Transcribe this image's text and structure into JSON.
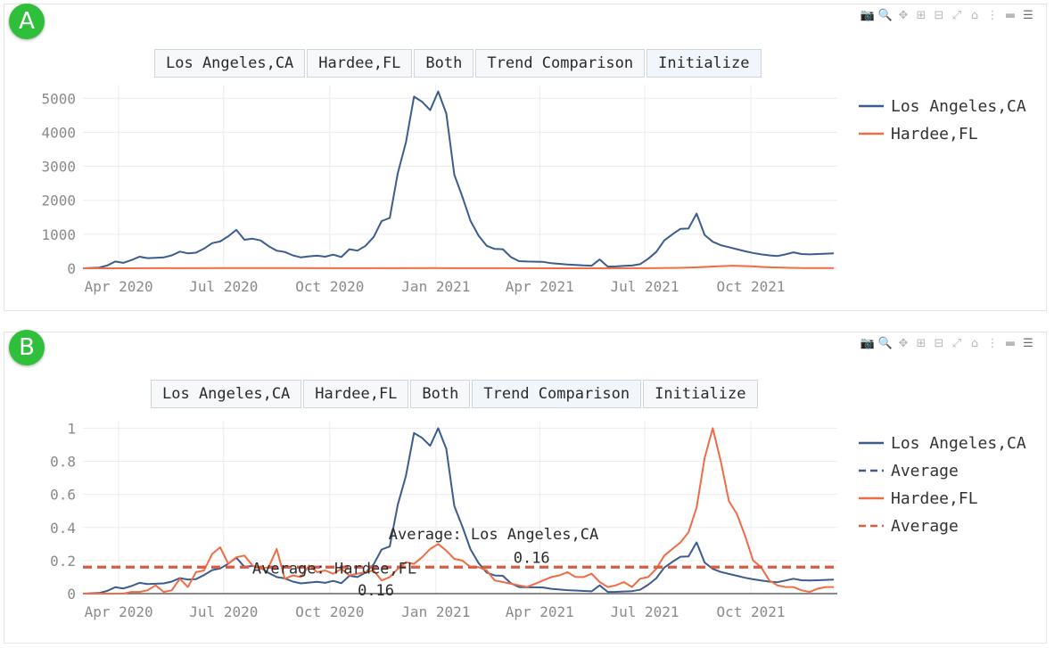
{
  "modebar": {
    "icons": [
      "camera-icon",
      "zoom-icon",
      "pan-icon",
      "zoom-in-icon",
      "zoom-out-icon",
      "autoscale-icon",
      "reset-axes-icon",
      "spike-lines-icon",
      "hover-closest-icon",
      "hover-compare-icon"
    ]
  },
  "panels": [
    {
      "badge": "A",
      "buttons": [
        "Los Angeles,CA",
        "Hardee,FL",
        "Both",
        "Trend Comparison",
        "Initialize"
      ],
      "highlighted_button": 4
    },
    {
      "badge": "B",
      "buttons": [
        "Los Angeles,CA",
        "Hardee,FL",
        "Both",
        "Trend Comparison",
        "Initialize"
      ],
      "highlighted_button": 3
    }
  ],
  "chart_data": [
    {
      "type": "line",
      "title": "",
      "x_ticks": [
        "Apr 2020",
        "Jul 2020",
        "Oct 2020",
        "Jan 2021",
        "Apr 2021",
        "Jul 2021",
        "Oct 2021"
      ],
      "x_tick_dates": [
        "2020-04-01",
        "2020-07-01",
        "2020-10-01",
        "2021-01-01",
        "2021-04-01",
        "2021-07-01",
        "2021-10-01"
      ],
      "x_range": [
        "2020-03-01",
        "2021-12-15"
      ],
      "y_ticks": [
        0,
        1000,
        2000,
        3000,
        4000,
        5000
      ],
      "y_tick_labels": [
        "0",
        "1000",
        "2000",
        "3000",
        "4000",
        "5000"
      ],
      "ylim": [
        0,
        5400
      ],
      "grid": true,
      "legend_position": "right",
      "series": [
        {
          "name": "Los Angeles,CA",
          "color": "#3b5c8f",
          "dash": "solid",
          "x": [
            "2020-03-01",
            "2020-03-08",
            "2020-03-15",
            "2020-03-22",
            "2020-03-29",
            "2020-04-05",
            "2020-04-12",
            "2020-04-19",
            "2020-04-26",
            "2020-05-03",
            "2020-05-10",
            "2020-05-17",
            "2020-05-24",
            "2020-05-31",
            "2020-06-07",
            "2020-06-14",
            "2020-06-21",
            "2020-06-28",
            "2020-07-05",
            "2020-07-12",
            "2020-07-19",
            "2020-07-26",
            "2020-08-02",
            "2020-08-09",
            "2020-08-16",
            "2020-08-23",
            "2020-08-30",
            "2020-09-06",
            "2020-09-13",
            "2020-09-20",
            "2020-09-27",
            "2020-10-04",
            "2020-10-11",
            "2020-10-18",
            "2020-10-25",
            "2020-11-01",
            "2020-11-08",
            "2020-11-15",
            "2020-11-22",
            "2020-11-29",
            "2020-12-06",
            "2020-12-13",
            "2020-12-20",
            "2020-12-27",
            "2021-01-03",
            "2021-01-10",
            "2021-01-17",
            "2021-01-24",
            "2021-01-31",
            "2021-02-07",
            "2021-02-14",
            "2021-02-21",
            "2021-02-28",
            "2021-03-07",
            "2021-03-14",
            "2021-03-21",
            "2021-03-28",
            "2021-04-04",
            "2021-04-11",
            "2021-04-18",
            "2021-04-25",
            "2021-05-02",
            "2021-05-09",
            "2021-05-16",
            "2021-05-23",
            "2021-05-30",
            "2021-06-06",
            "2021-06-13",
            "2021-06-20",
            "2021-06-27",
            "2021-07-04",
            "2021-07-11",
            "2021-07-18",
            "2021-07-25",
            "2021-08-01",
            "2021-08-08",
            "2021-08-15",
            "2021-08-22",
            "2021-08-29",
            "2021-09-05",
            "2021-09-12",
            "2021-09-19",
            "2021-09-26",
            "2021-10-03",
            "2021-10-10",
            "2021-10-17",
            "2021-10-24",
            "2021-10-31",
            "2021-11-07",
            "2021-11-14",
            "2021-11-21",
            "2021-11-28",
            "2021-12-05",
            "2021-12-12"
          ],
          "y": [
            0,
            10,
            20,
            80,
            200,
            160,
            240,
            340,
            300,
            310,
            320,
            380,
            490,
            440,
            460,
            580,
            740,
            790,
            940,
            1130,
            840,
            870,
            820,
            650,
            520,
            480,
            380,
            320,
            350,
            370,
            340,
            400,
            330,
            560,
            520,
            660,
            920,
            1390,
            1480,
            2800,
            3700,
            5050,
            4900,
            4650,
            5200,
            4550,
            2750,
            2100,
            1400,
            960,
            660,
            570,
            560,
            330,
            210,
            200,
            195,
            190,
            150,
            130,
            110,
            100,
            85,
            75,
            260,
            50,
            55,
            70,
            80,
            120,
            280,
            480,
            820,
            1000,
            1160,
            1170,
            1610,
            980,
            780,
            680,
            620,
            560,
            500,
            450,
            410,
            380,
            360,
            410,
            470,
            420,
            410,
            420,
            430,
            440
          ]
        },
        {
          "name": "Hardee,FL",
          "color": "#ef6c45",
          "dash": "solid",
          "x": [
            "2020-03-01",
            "2020-05-01",
            "2020-07-01",
            "2020-09-01",
            "2020-11-01",
            "2021-01-01",
            "2021-03-01",
            "2021-05-01",
            "2021-07-01",
            "2021-08-01",
            "2021-08-15",
            "2021-09-01",
            "2021-09-15",
            "2021-10-01",
            "2021-10-15",
            "2021-11-01",
            "2021-11-15",
            "2021-12-12"
          ],
          "y": [
            0,
            2,
            5,
            4,
            3,
            6,
            3,
            1,
            2,
            12,
            30,
            55,
            75,
            60,
            35,
            15,
            5,
            4
          ]
        }
      ]
    },
    {
      "type": "line",
      "title": "",
      "x_ticks": [
        "Apr 2020",
        "Jul 2020",
        "Oct 2020",
        "Jan 2021",
        "Apr 2021",
        "Jul 2021",
        "Oct 2021"
      ],
      "x_tick_dates": [
        "2020-04-01",
        "2020-07-01",
        "2020-10-01",
        "2021-01-01",
        "2021-04-01",
        "2021-07-01",
        "2021-10-01"
      ],
      "x_range": [
        "2020-03-01",
        "2021-12-15"
      ],
      "y_ticks": [
        0,
        0.2,
        0.4,
        0.6,
        0.8,
        1
      ],
      "y_tick_labels": [
        "0",
        "0.2",
        "0.4",
        "0.6",
        "0.8",
        "1"
      ],
      "ylim": [
        0,
        1.04
      ],
      "grid": true,
      "legend_position": "right",
      "series": [
        {
          "name": "Los Angeles,CA",
          "color": "#3b5c8f",
          "dash": "solid",
          "x": [
            "2020-03-01",
            "2020-03-08",
            "2020-03-15",
            "2020-03-22",
            "2020-03-29",
            "2020-04-05",
            "2020-04-12",
            "2020-04-19",
            "2020-04-26",
            "2020-05-03",
            "2020-05-10",
            "2020-05-17",
            "2020-05-24",
            "2020-05-31",
            "2020-06-07",
            "2020-06-14",
            "2020-06-21",
            "2020-06-28",
            "2020-07-05",
            "2020-07-12",
            "2020-07-19",
            "2020-07-26",
            "2020-08-02",
            "2020-08-09",
            "2020-08-16",
            "2020-08-23",
            "2020-08-30",
            "2020-09-06",
            "2020-09-13",
            "2020-09-20",
            "2020-09-27",
            "2020-10-04",
            "2020-10-11",
            "2020-10-18",
            "2020-10-25",
            "2020-11-01",
            "2020-11-08",
            "2020-11-15",
            "2020-11-22",
            "2020-11-29",
            "2020-12-06",
            "2020-12-13",
            "2020-12-20",
            "2020-12-27",
            "2021-01-03",
            "2021-01-10",
            "2021-01-17",
            "2021-01-24",
            "2021-01-31",
            "2021-02-07",
            "2021-02-14",
            "2021-02-21",
            "2021-02-28",
            "2021-03-07",
            "2021-03-14",
            "2021-03-21",
            "2021-03-28",
            "2021-04-04",
            "2021-04-11",
            "2021-04-18",
            "2021-04-25",
            "2021-05-02",
            "2021-05-09",
            "2021-05-16",
            "2021-05-23",
            "2021-05-30",
            "2021-06-06",
            "2021-06-13",
            "2021-06-20",
            "2021-06-27",
            "2021-07-04",
            "2021-07-11",
            "2021-07-18",
            "2021-07-25",
            "2021-08-01",
            "2021-08-08",
            "2021-08-15",
            "2021-08-22",
            "2021-08-29",
            "2021-09-05",
            "2021-09-12",
            "2021-09-19",
            "2021-09-26",
            "2021-10-03",
            "2021-10-10",
            "2021-10-17",
            "2021-10-24",
            "2021-10-31",
            "2021-11-07",
            "2021-11-14",
            "2021-11-21",
            "2021-11-28",
            "2021-12-05",
            "2021-12-12"
          ],
          "y": [
            0,
            0.002,
            0.004,
            0.016,
            0.039,
            0.031,
            0.046,
            0.065,
            0.058,
            0.06,
            0.062,
            0.073,
            0.094,
            0.085,
            0.088,
            0.112,
            0.142,
            0.152,
            0.181,
            0.217,
            0.162,
            0.167,
            0.158,
            0.125,
            0.1,
            0.092,
            0.073,
            0.062,
            0.067,
            0.071,
            0.065,
            0.077,
            0.063,
            0.108,
            0.1,
            0.127,
            0.177,
            0.267,
            0.285,
            0.538,
            0.712,
            0.971,
            0.942,
            0.894,
            1.0,
            0.875,
            0.529,
            0.404,
            0.269,
            0.185,
            0.127,
            0.11,
            0.108,
            0.063,
            0.04,
            0.038,
            0.038,
            0.037,
            0.029,
            0.025,
            0.021,
            0.019,
            0.016,
            0.014,
            0.05,
            0.01,
            0.011,
            0.013,
            0.015,
            0.023,
            0.054,
            0.092,
            0.158,
            0.192,
            0.223,
            0.225,
            0.31,
            0.188,
            0.15,
            0.131,
            0.119,
            0.108,
            0.096,
            0.087,
            0.079,
            0.073,
            0.069,
            0.079,
            0.09,
            0.081,
            0.079,
            0.081,
            0.083,
            0.085
          ]
        },
        {
          "name": "Average",
          "color": "#3b5c8f",
          "dash": "dash",
          "x": [
            "2020-03-01",
            "2021-12-12"
          ],
          "y": [
            0.16,
            0.16
          ]
        },
        {
          "name": "Hardee,FL",
          "color": "#ef6c45",
          "dash": "solid",
          "x": [
            "2020-03-01",
            "2020-03-08",
            "2020-03-15",
            "2020-03-22",
            "2020-03-29",
            "2020-04-05",
            "2020-04-12",
            "2020-04-19",
            "2020-04-26",
            "2020-05-03",
            "2020-05-10",
            "2020-05-17",
            "2020-05-24",
            "2020-05-31",
            "2020-06-07",
            "2020-06-14",
            "2020-06-21",
            "2020-06-28",
            "2020-07-05",
            "2020-07-12",
            "2020-07-19",
            "2020-07-26",
            "2020-08-02",
            "2020-08-09",
            "2020-08-16",
            "2020-08-23",
            "2020-08-30",
            "2020-09-06",
            "2020-09-13",
            "2020-09-20",
            "2020-09-27",
            "2020-10-04",
            "2020-10-11",
            "2020-10-18",
            "2020-10-25",
            "2020-11-01",
            "2020-11-08",
            "2020-11-15",
            "2020-11-22",
            "2020-11-29",
            "2020-12-06",
            "2020-12-13",
            "2020-12-20",
            "2020-12-27",
            "2021-01-03",
            "2021-01-10",
            "2021-01-17",
            "2021-01-24",
            "2021-01-31",
            "2021-02-07",
            "2021-02-14",
            "2021-02-21",
            "2021-02-28",
            "2021-03-07",
            "2021-03-14",
            "2021-03-21",
            "2021-03-28",
            "2021-04-04",
            "2021-04-11",
            "2021-04-18",
            "2021-04-25",
            "2021-05-02",
            "2021-05-09",
            "2021-05-16",
            "2021-05-23",
            "2021-05-30",
            "2021-06-06",
            "2021-06-13",
            "2021-06-20",
            "2021-06-27",
            "2021-07-04",
            "2021-07-11",
            "2021-07-18",
            "2021-07-25",
            "2021-08-01",
            "2021-08-08",
            "2021-08-15",
            "2021-08-22",
            "2021-08-29",
            "2021-09-05",
            "2021-09-12",
            "2021-09-19",
            "2021-09-26",
            "2021-10-03",
            "2021-10-10",
            "2021-10-17",
            "2021-10-24",
            "2021-10-31",
            "2021-11-07",
            "2021-11-14",
            "2021-11-21",
            "2021-11-28",
            "2021-12-05",
            "2021-12-12"
          ],
          "y": [
            0,
            0,
            0,
            0,
            0,
            0,
            0.01,
            0.01,
            0.02,
            0.05,
            0.01,
            0.02,
            0.09,
            0.04,
            0.13,
            0.14,
            0.24,
            0.28,
            0.18,
            0.22,
            0.23,
            0.17,
            0.15,
            0.16,
            0.27,
            0.09,
            0.11,
            0.1,
            0.17,
            0.13,
            0.14,
            0.12,
            0.15,
            0.11,
            0.12,
            0.13,
            0.14,
            0.08,
            0.1,
            0.15,
            0.19,
            0.18,
            0.22,
            0.27,
            0.3,
            0.26,
            0.21,
            0.2,
            0.16,
            0.16,
            0.14,
            0.08,
            0.07,
            0.06,
            0.05,
            0.04,
            0.06,
            0.08,
            0.1,
            0.11,
            0.13,
            0.1,
            0.1,
            0.12,
            0.07,
            0.04,
            0.05,
            0.07,
            0.04,
            0.09,
            0.1,
            0.15,
            0.23,
            0.27,
            0.31,
            0.37,
            0.52,
            0.82,
            1.0,
            0.8,
            0.56,
            0.48,
            0.35,
            0.2,
            0.16,
            0.08,
            0.05,
            0.04,
            0.04,
            0.02,
            0.01,
            0.03,
            0.04,
            0.04
          ]
        },
        {
          "name": "Average",
          "color": "#e05a3b",
          "dash": "dash",
          "x": [
            "2020-03-01",
            "2021-12-12"
          ],
          "y": [
            0.16,
            0.16
          ]
        }
      ],
      "annotations": [
        {
          "text": "Average: Los Angeles,CA",
          "x": "2021-02-20",
          "y": 0.33
        },
        {
          "text": "0.16",
          "x": "2021-03-25",
          "y": 0.185
        },
        {
          "text": "Average: Hardee,FL",
          "x": "2020-10-05",
          "y": 0.12
        },
        {
          "text": "0.16",
          "x": "2020-11-10",
          "y": -0.01
        }
      ],
      "zero_line": true
    }
  ]
}
